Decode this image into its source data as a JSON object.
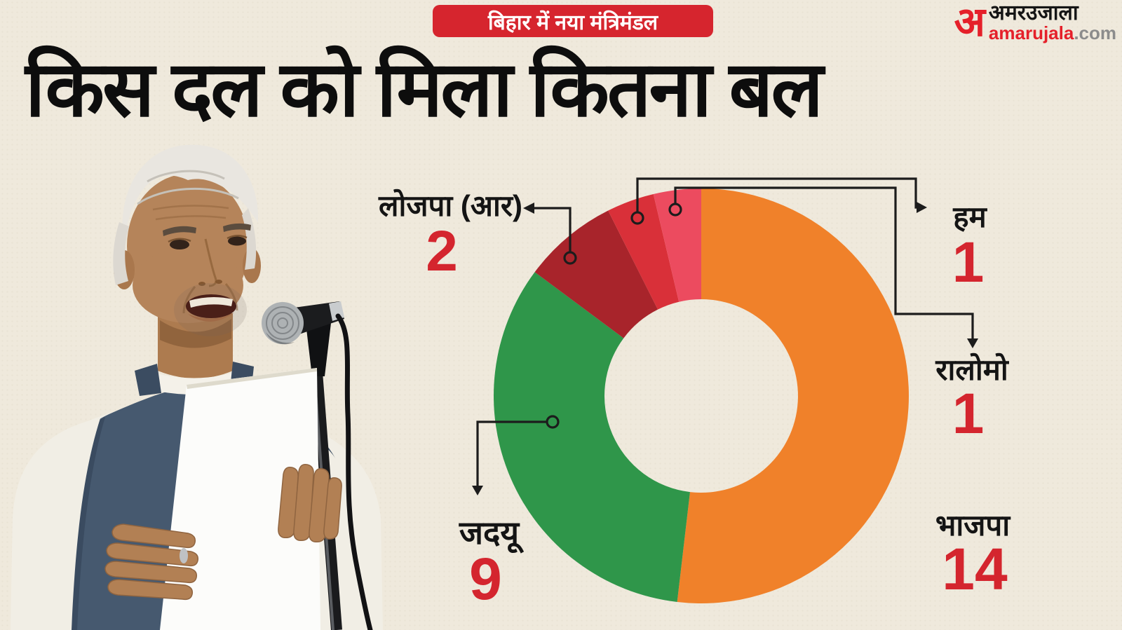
{
  "page": {
    "background": "#EFE9DC"
  },
  "badge": {
    "text": "बिहार में नया मंत्रिमंडल",
    "bg": "#D6252E",
    "color": "#FFFFFF"
  },
  "title": {
    "text": "किस दल को मिला कितना बल"
  },
  "logo": {
    "mark": "अ",
    "name_hindi": "अमरउजाला",
    "domain": "amarujala",
    "tld": ".com",
    "red": "#E5202A",
    "gray": "#8C8C8C"
  },
  "chart_data": {
    "type": "pie",
    "subtype": "donut",
    "title": "किस दल को मिला कितना बल",
    "categories": [
      "भाजपा",
      "जदयू",
      "लोजपा (आर)",
      "हम",
      "रालोमो"
    ],
    "values": [
      14,
      9,
      2,
      1,
      1
    ],
    "colors": [
      "#F0812A",
      "#2F964A",
      "#A8242B",
      "#D93039",
      "#EC4B5F"
    ],
    "start_angle_deg": 0,
    "direction": "clockwise",
    "inner_radius_ratio": 0.465,
    "legend_position": "callouts"
  },
  "labels": [
    {
      "id": "lojpa",
      "name": "लोजपा (आर)",
      "value": "2"
    },
    {
      "id": "ham",
      "name": "हम",
      "value": "1"
    },
    {
      "id": "ralomo",
      "name": "रालोमो",
      "value": "1"
    },
    {
      "id": "bjp",
      "name": "भाजपा",
      "value": "14"
    },
    {
      "id": "jdu",
      "name": "जदयू",
      "value": "9"
    }
  ],
  "value_color": "#D4252E"
}
